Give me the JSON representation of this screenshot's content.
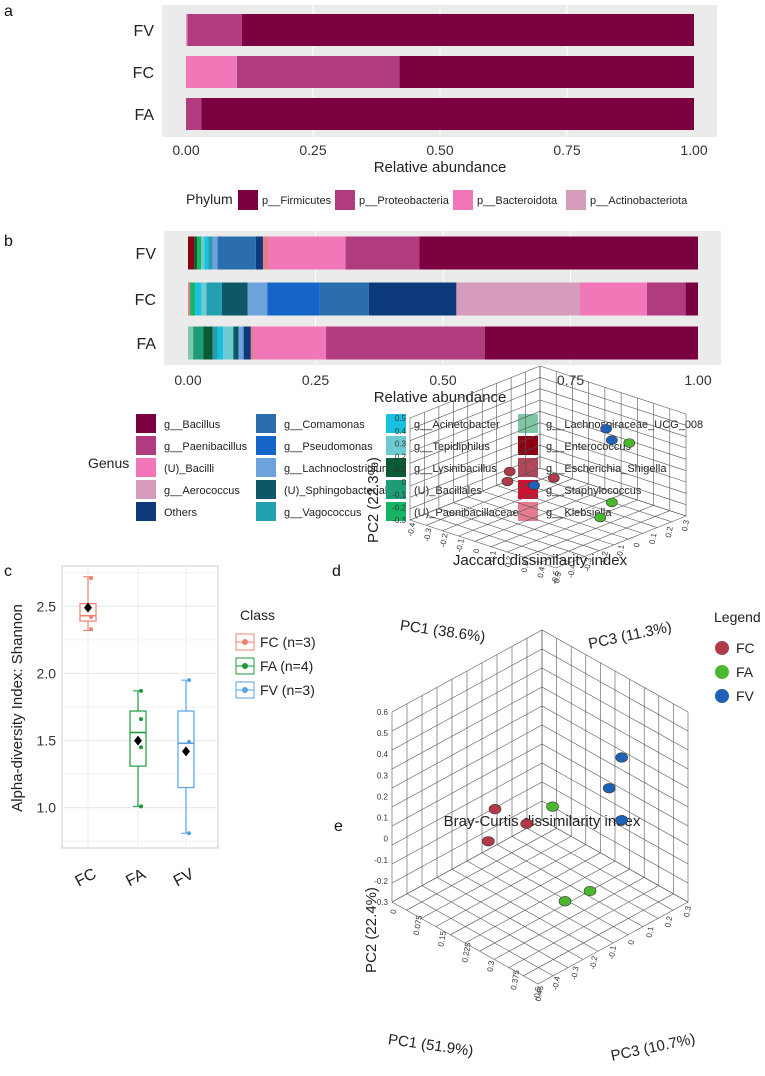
{
  "chart_data": [
    {
      "panel": "a",
      "type": "bar",
      "orientation": "horizontal-stacked",
      "categories": [
        "FV",
        "FC",
        "FA"
      ],
      "xlabel": "Relative abundance",
      "xticks": [
        "0.00",
        "0.25",
        "0.50",
        "0.75",
        "1.00"
      ],
      "xlim": [
        0,
        1
      ],
      "legend_title": "Phylum",
      "series": [
        {
          "name": "p__Firmicutes",
          "color": "#7a0040",
          "values": [
            0.89,
            0.58,
            0.97
          ]
        },
        {
          "name": "p__Proteobacteria",
          "color": "#b03b7e",
          "values": [
            0.107,
            0.32,
            0.03
          ]
        },
        {
          "name": "p__Bacteroidota",
          "color": "#f177b9",
          "values": [
            0.001,
            0.1,
            0.0
          ]
        },
        {
          "name": "p__Actinobacteriota",
          "color": "#d59cbc",
          "values": [
            0.002,
            0.0,
            0.0
          ]
        }
      ],
      "stack_order_from_right": [
        "p__Firmicutes",
        "p__Proteobacteria",
        "p__Bacteroidota",
        "p__Actinobacteriota"
      ]
    },
    {
      "panel": "b",
      "type": "bar",
      "orientation": "horizontal-stacked",
      "categories": [
        "FV",
        "FC",
        "FA"
      ],
      "xlabel": "Relative abundance",
      "xticks": [
        "0.00",
        "0.25",
        "0.50",
        "0.75",
        "1.00"
      ],
      "xlim": [
        0,
        1
      ],
      "legend_title": "Genus",
      "legend_columns": [
        [
          "g__Bacillus",
          "g__Paenibacillus",
          "(U)_Bacilli",
          "g__Aerococcus",
          "Others"
        ],
        [
          "g__Comamonas",
          "g__Pseudomonas",
          "g__Lachnoclostridium",
          "(U)_Sphingobacteriales",
          "g__Vagococcus"
        ],
        [
          "g__Acinetobacter",
          "g__Tepidiphilus",
          "g__Lysinibacillus",
          "(U)_Bacillales",
          "(U)_Paenibacillaceae"
        ],
        [
          "g__Lachnospiraceae_UCG_008",
          "g__Enterococcus",
          "g__Escherichia_Shigella",
          "g__Staphylococcus",
          "g__Klebsiella"
        ]
      ],
      "colors": {
        "g__Bacillus": "#7a0040",
        "g__Paenibacillus": "#b03b7e",
        "(U)_Bacilli": "#f177b9",
        "g__Aerococcus": "#d59cbc",
        "Others": "#0d3a7a",
        "g__Comamonas": "#2a6ead",
        "g__Pseudomonas": "#1565c8",
        "g__Lachnoclostridium": "#6da3dc",
        "(U)_Sphingobacteriales": "#0e5766",
        "g__Vagococcus": "#22a0b0",
        "g__Acinetobacter": "#19c1e0",
        "g__Tepidiphilus": "#6ccbd0",
        "g__Lysinibacillus": "#0a5a35",
        "(U)_Bacillales": "#1e9c77",
        "(U)_Paenibacillaceae": "#16b565",
        "g__Lachnospiraceae_UCG_008": "#7ec8a7",
        "g__Enterococcus": "#8c0014",
        "g__Escherichia_Shigella": "#b0485a",
        "g__Staphylococcus": "#d0102e",
        "g__Klebsiella": "#e57d8f"
      },
      "bars": {
        "FV": [
          [
            "g__Enterococcus",
            0.012
          ],
          [
            "g__Lysinibacillus",
            0.006
          ],
          [
            "(U)_Paenibacillaceae",
            0.008
          ],
          [
            "g__Tepidiphilus",
            0.006
          ],
          [
            "g__Acinetobacter",
            0.008
          ],
          [
            "g__Vagococcus",
            0.008
          ],
          [
            "g__Lachnoclostridium",
            0.01
          ],
          [
            "g__Comamonas",
            0.075
          ],
          [
            "Others",
            0.014
          ],
          [
            "g__Klebsiella",
            0.012
          ],
          [
            "(U)_Bacilli",
            0.15
          ],
          [
            "g__Paenibacillus",
            0.145
          ],
          [
            "g__Bacillus",
            0.546
          ]
        ],
        "FC": [
          [
            "g__Klebsiella",
            0.004
          ],
          [
            "(U)_Paenibacillaceae",
            0.01
          ],
          [
            "g__Acinetobacter",
            0.012
          ],
          [
            "g__Tepidiphilus",
            0.01
          ],
          [
            "g__Vagococcus",
            0.03
          ],
          [
            "(U)_Sphingobacteriales",
            0.05
          ],
          [
            "g__Lachnoclostridium",
            0.038
          ],
          [
            "g__Pseudomonas",
            0.102
          ],
          [
            "g__Comamonas",
            0.095
          ],
          [
            "Others",
            0.17
          ],
          [
            "g__Aerococcus",
            0.24
          ],
          [
            "(U)_Bacilli",
            0.13
          ],
          [
            "g__Paenibacillus",
            0.075
          ],
          [
            "g__Bacillus",
            0.024
          ]
        ],
        "FA": [
          [
            "g__Lachnospiraceae_UCG_008",
            0.01
          ],
          [
            "(U)_Bacillales",
            0.02
          ],
          [
            "g__Lysinibacillus",
            0.018
          ],
          [
            "g__Vagococcus",
            0.01
          ],
          [
            "g__Acinetobacter",
            0.01
          ],
          [
            "g__Tepidiphilus",
            0.02
          ],
          [
            "(U)_Sphingobacteriales",
            0.01
          ],
          [
            "g__Lachnoclostridium",
            0.01
          ],
          [
            "Others",
            0.014
          ],
          [
            "g__Klebsiella",
            0.006
          ],
          [
            "(U)_Bacilli",
            0.14
          ],
          [
            "g__Paenibacillus",
            0.308
          ],
          [
            "g__Bacillus",
            0.414
          ]
        ]
      }
    },
    {
      "panel": "c",
      "type": "box",
      "categories": [
        "FC",
        "FA",
        "FV"
      ],
      "ylabel": "Alpha-diversity  Index: Shannon",
      "ylim": [
        0.7,
        2.8
      ],
      "yticks": [
        "1.0",
        "1.5",
        "2.0",
        "2.5"
      ],
      "legend_title": "Class",
      "legend": [
        "FC (n=3)",
        "FA (n=4)",
        "FV (n=3)"
      ],
      "colors": [
        "#f08070",
        "#1a9a3a",
        "#5aa0e8"
      ],
      "boxes": [
        {
          "q1": 2.39,
          "median": 2.43,
          "q3": 2.52,
          "min": 2.32,
          "max": 2.72,
          "mean": 2.49,
          "points": [
            2.71,
            2.42,
            2.33
          ]
        },
        {
          "q1": 1.31,
          "median": 1.56,
          "q3": 1.72,
          "min": 1.01,
          "max": 1.87,
          "mean": 1.5,
          "points": [
            1.87,
            1.66,
            1.45,
            1.01
          ]
        },
        {
          "q1": 1.15,
          "median": 1.48,
          "q3": 1.72,
          "min": 0.81,
          "max": 1.95,
          "mean": 1.42,
          "points": [
            1.95,
            1.49,
            0.81
          ]
        }
      ]
    },
    {
      "panel": "d",
      "type": "scatter",
      "title": "Jaccard dissimilarity index",
      "xlabel": "PC1 (38.6%)",
      "ylabel": "PC2 (22.3%)",
      "zlabel": "PC3 (11.3%)",
      "yticks": [
        "0.5",
        "0.4",
        "0.3",
        "0.2",
        "0.1",
        "0",
        "-0.1",
        "-0.2",
        "-0.3"
      ],
      "xticks": [
        "-0.5",
        "-0.4",
        "-0.3",
        "-0.2",
        "-0.1",
        "0",
        "0.1",
        "0.2",
        "0.3"
      ],
      "zticks": [
        "-0.4",
        "-0.3",
        "-0.2",
        "-0.1",
        "0",
        "0.1",
        "0.2",
        "0.3",
        "0.4",
        "0.5"
      ],
      "legend_title": "Legend",
      "legend": [
        "FC",
        "FA",
        "FV"
      ],
      "colors": [
        "#b03a48",
        "#4ab82e",
        "#1e62b8"
      ],
      "points": {
        "FC": [
          [
            -0.28,
            0.12,
            -0.1
          ],
          [
            -0.3,
            0.04,
            -0.1
          ],
          [
            -0.05,
            0.02,
            0.05
          ]
        ],
        "FA": [
          [
            0.35,
            0.25,
            0.3
          ],
          [
            0.25,
            -0.25,
            0.25
          ],
          [
            0.2,
            -0.38,
            0.2
          ]
        ],
        "FV": [
          [
            0.2,
            0.42,
            0.25
          ],
          [
            0.25,
            0.3,
            0.25
          ],
          [
            -0.12,
            -0.05,
            -0.05
          ]
        ]
      }
    },
    {
      "panel": "e",
      "type": "scatter",
      "title": "Bray-Curtis dissimilarity index",
      "xlabel": "PC1 (51.9%)",
      "ylabel": "PC2 (22.4%)",
      "zlabel": "PC3 (10.7%)",
      "yticks": [
        "0.6",
        "0.5",
        "0.4",
        "0.3",
        "0.2",
        "0.1",
        "0",
        "-0.1",
        "-0.2",
        "-0.3"
      ],
      "xticks": [
        "-0.5",
        "-0.4",
        "-0.3",
        "-0.2",
        "-0.1",
        "0",
        "0.1",
        "0.2",
        "0.3"
      ],
      "zticks": [
        "0",
        "0.075",
        "0.15",
        "0.225",
        "0.3",
        "0.375",
        "0.45"
      ],
      "colors": [
        "#b03a48",
        "#4ab82e",
        "#1e62b8"
      ],
      "points": {
        "FC": [
          [
            -0.35,
            0.05,
            -0.1
          ],
          [
            -0.3,
            0.2,
            -0.1
          ],
          [
            -0.15,
            0.1,
            0.0
          ]
        ],
        "FA": [
          [
            0.0,
            0.15,
            0.05
          ],
          [
            0.15,
            -0.3,
            0.2
          ],
          [
            0.05,
            -0.35,
            0.1
          ]
        ],
        "FV": [
          [
            0.3,
            0.38,
            0.3
          ],
          [
            0.25,
            0.22,
            0.25
          ],
          [
            0.3,
            0.05,
            0.3
          ]
        ]
      }
    }
  ],
  "labels": {
    "panel_a": "a",
    "panel_b": "b",
    "panel_c": "c",
    "panel_d": "d",
    "panel_e": "e",
    "legend_class": "Class",
    "legend_legend": "Legend"
  }
}
